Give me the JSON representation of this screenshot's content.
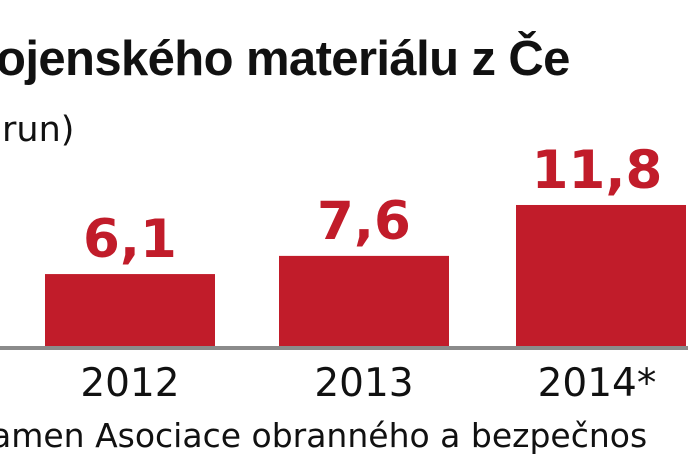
{
  "colors": {
    "background": "#ffffff",
    "bar": "#c11c2a",
    "value_label": "#c11c2a",
    "text": "#111111",
    "axis": "#8b8b8b"
  },
  "header": {
    "title": "ojenského materiálu z Če",
    "subtitle": "run)"
  },
  "footer": {
    "source": "amen Asociace obranného a bezpečnos"
  },
  "chart_data": {
    "type": "bar",
    "title": "ojenského materiálu z Če",
    "subtitle": "run)",
    "categories": [
      "2012",
      "2013",
      "2014*"
    ],
    "values": [
      6.1,
      7.6,
      11.8
    ],
    "value_labels": [
      "6,1",
      "7,6",
      "11,8"
    ],
    "xlabel": "",
    "ylabel": "",
    "ylim": [
      0,
      16
    ],
    "grid": false,
    "legend": "none",
    "source": "amen Asociace obranného a bezpečnos"
  }
}
